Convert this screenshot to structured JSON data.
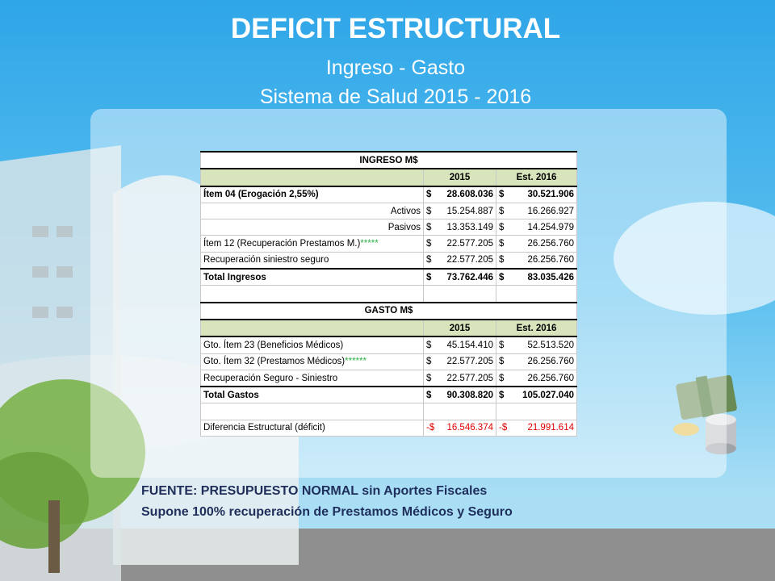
{
  "header": {
    "title": "DEFICIT ESTRUCTURAL",
    "subtitle": "Ingreso - Gasto",
    "subtitle2": "Sistema de Salud 2015 - 2016"
  },
  "table": {
    "sections": [
      {
        "title": "INGRESO M$",
        "columns": [
          "2015",
          "Est. 2016"
        ],
        "rows": [
          {
            "label": "Ítem 04 (Erogación 2,55%)",
            "bold": true,
            "y2015": {
              "sign": "$",
              "amount": "28.608.036"
            },
            "y2016": {
              "sign": "$",
              "amount": "30.521.906"
            }
          },
          {
            "label": "Activos",
            "align": "right",
            "y2015": {
              "sign": "$",
              "amount": "15.254.887"
            },
            "y2016": {
              "sign": "$",
              "amount": "16.266.927"
            }
          },
          {
            "label": "Pasivos",
            "align": "right",
            "y2015": {
              "sign": "$",
              "amount": "13.353.149"
            },
            "y2016": {
              "sign": "$",
              "amount": "14.254.979"
            }
          },
          {
            "label": "Ítem 12 (Recuperación Prestamos M.)",
            "note": "*****",
            "y2015": {
              "sign": "$",
              "amount": "22.577.205"
            },
            "y2016": {
              "sign": "$",
              "amount": "26.256.760"
            }
          },
          {
            "label": "Recuperación siniestro seguro",
            "y2015": {
              "sign": "$",
              "amount": "22.577.205"
            },
            "y2016": {
              "sign": "$",
              "amount": "26.256.760"
            }
          }
        ],
        "total": {
          "label": "Total Ingresos",
          "y2015": {
            "sign": "$",
            "amount": "73.762.446"
          },
          "y2016": {
            "sign": "$",
            "amount": "83.035.426"
          }
        }
      },
      {
        "title": "GASTO M$",
        "columns": [
          "2015",
          "Est. 2016"
        ],
        "rows": [
          {
            "label": "Gto. Ítem 23 (Beneficios Médicos)",
            "y2015": {
              "sign": "$",
              "amount": "45.154.410"
            },
            "y2016": {
              "sign": "$",
              "amount": "52.513.520"
            }
          },
          {
            "label": "Gto. Ítem 32 (Prestamos Médicos)",
            "note": "******",
            "y2015": {
              "sign": "$",
              "amount": "22.577.205"
            },
            "y2016": {
              "sign": "$",
              "amount": "26.256.760"
            }
          },
          {
            "label": "Recuperación Seguro - Siniestro",
            "y2015": {
              "sign": "$",
              "amount": "22.577.205"
            },
            "y2016": {
              "sign": "$",
              "amount": "26.256.760"
            }
          }
        ],
        "total": {
          "label": "Total Gastos",
          "y2015": {
            "sign": "$",
            "amount": "90.308.820"
          },
          "y2016": {
            "sign": "$",
            "amount": "105.027.040"
          }
        }
      }
    ],
    "difference": {
      "label": "Diferencia Estructural (déficit)",
      "y2015": {
        "sign": "-$",
        "amount": "16.546.374"
      },
      "y2016": {
        "sign": "-$",
        "amount": "21.991.614"
      }
    }
  },
  "footer": {
    "line1": "FUENTE: PRESUPUESTO NORMAL  sin Aportes Fiscales",
    "line2": "Supone 100% recuperación de Prestamos Médicos y Seguro"
  }
}
